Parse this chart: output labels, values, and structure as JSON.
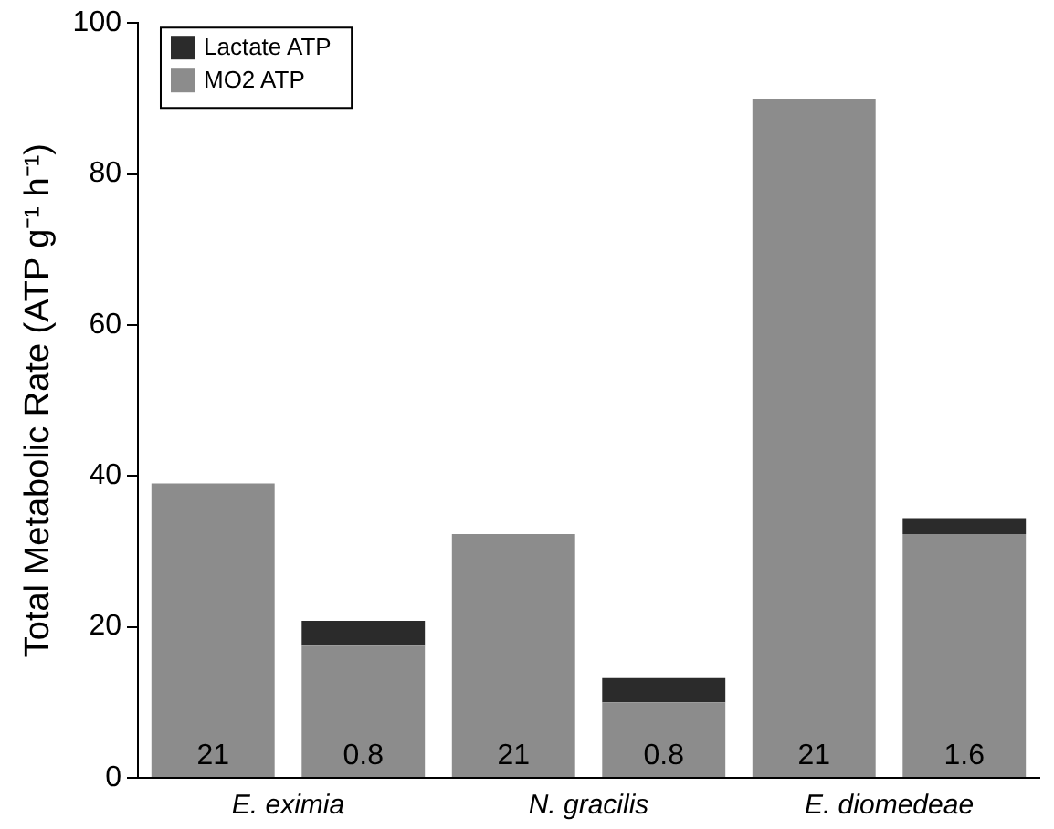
{
  "chart_data": {
    "type": "bar",
    "ylabel": "Total Metabolic Rate (ATP g⁻¹ h⁻¹)",
    "categories": [
      "21",
      "0.8",
      "21",
      "0.8",
      "21",
      "1.6"
    ],
    "series": [
      {
        "name": "MO2 ATP",
        "color": "#8c8c8c",
        "values": [
          39,
          17.5,
          32.3,
          10,
          90,
          32.3
        ]
      },
      {
        "name": "Lactate ATP",
        "color": "#2b2b2b",
        "values": [
          0,
          3.3,
          0,
          3.2,
          0,
          2.1
        ]
      }
    ],
    "stacked": true,
    "ylim": [
      0,
      100
    ],
    "yticks": [
      0,
      20,
      40,
      60,
      80,
      100
    ],
    "grid": false,
    "legend": "top left",
    "annotations": [
      "E. eximia",
      "N. gracilis",
      "E. diomedeae"
    ]
  }
}
